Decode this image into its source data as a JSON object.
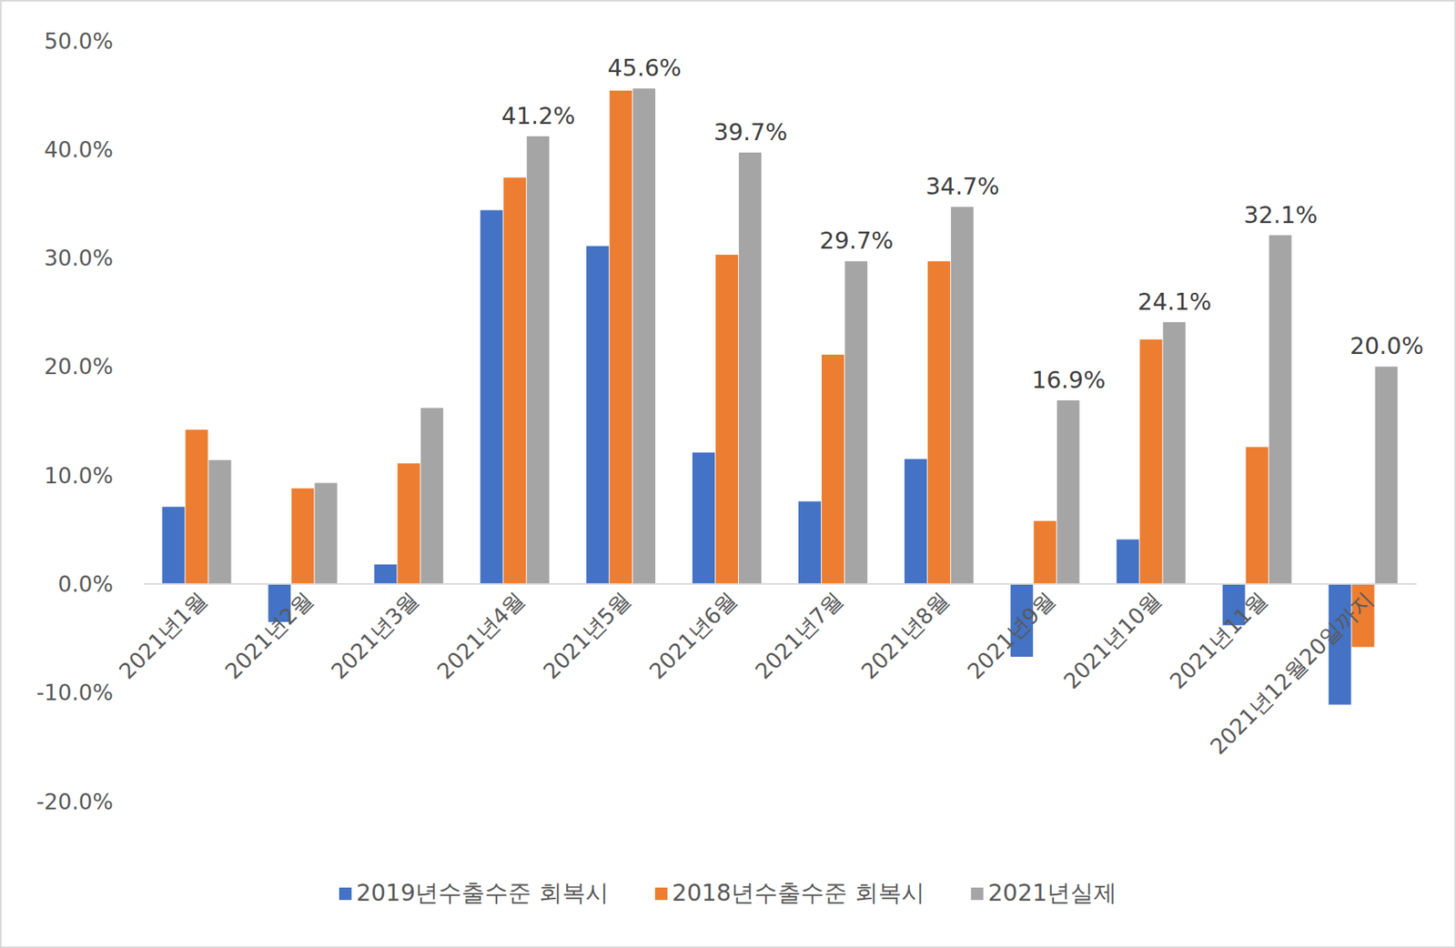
{
  "chart_data": {
    "type": "bar",
    "categories": [
      "2021년1월",
      "2021년2월",
      "2021년3월",
      "2021년4월",
      "2021년5월",
      "2021년6월",
      "2021년7월",
      "2021년8월",
      "2021년9월",
      "2021년10월",
      "2021년11월",
      "2021년12월20일까지"
    ],
    "series": [
      {
        "name": "2019년수출수준 회복시",
        "color": "#4472c4",
        "values": [
          7.1,
          -3.5,
          1.8,
          34.4,
          31.1,
          12.1,
          7.6,
          11.5,
          -6.7,
          4.1,
          -3.8,
          -11.1
        ]
      },
      {
        "name": "2018년수출수준 회복시",
        "color": "#ed7d31",
        "values": [
          14.2,
          8.8,
          11.1,
          37.4,
          45.4,
          30.3,
          21.1,
          29.7,
          5.8,
          22.5,
          12.6,
          -5.8
        ]
      },
      {
        "name": "2021년실제",
        "color": "#a5a5a5",
        "values": [
          11.4,
          9.3,
          16.2,
          41.2,
          45.6,
          39.7,
          29.7,
          34.7,
          16.9,
          24.1,
          32.1,
          20.0
        ],
        "data_labels": true,
        "value_labels": [
          null,
          null,
          null,
          "41.2%",
          "45.6%",
          "39.7%",
          "29.7%",
          "34.7%",
          "16.9%",
          "24.1%",
          "32.1%",
          "20.0%"
        ]
      }
    ],
    "ylim": [
      -20,
      50
    ],
    "yticks": [
      {
        "value": -20,
        "label": "-20.0%"
      },
      {
        "value": -10,
        "label": "-10.0%"
      },
      {
        "value": 0,
        "label": "0.0%"
      },
      {
        "value": 10,
        "label": "10.0%"
      },
      {
        "value": 20,
        "label": "20.0%"
      },
      {
        "value": 30,
        "label": "30.0%"
      },
      {
        "value": 40,
        "label": "40.0%"
      },
      {
        "value": 50,
        "label": "50.0%"
      }
    ],
    "grid": false,
    "legend": "bottom"
  }
}
